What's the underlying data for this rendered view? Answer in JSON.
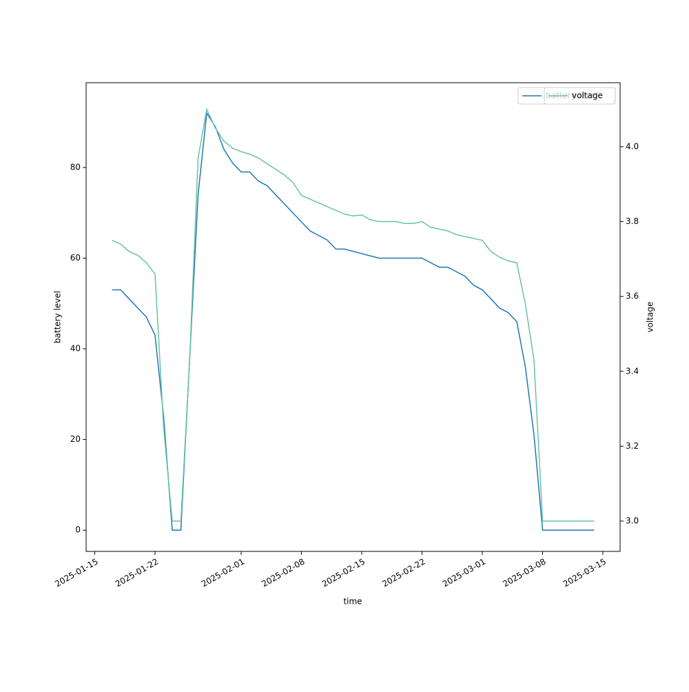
{
  "chart_data": {
    "type": "line",
    "xlabel": "time",
    "ylabel": "battery level",
    "y2label": "voltage",
    "x": [
      "2025-01-17",
      "2025-01-18",
      "2025-01-19",
      "2025-01-20",
      "2025-01-21",
      "2025-01-22",
      "2025-01-23",
      "2025-01-24",
      "2025-01-25",
      "2025-01-26",
      "2025-01-27",
      "2025-01-28",
      "2025-01-29",
      "2025-01-30",
      "2025-01-31",
      "2025-02-01",
      "2025-02-02",
      "2025-02-03",
      "2025-02-04",
      "2025-02-05",
      "2025-02-06",
      "2025-02-07",
      "2025-02-08",
      "2025-02-09",
      "2025-02-10",
      "2025-02-11",
      "2025-02-12",
      "2025-02-13",
      "2025-02-14",
      "2025-02-15",
      "2025-02-16",
      "2025-02-17",
      "2025-02-18",
      "2025-02-19",
      "2025-02-20",
      "2025-02-21",
      "2025-02-22",
      "2025-02-23",
      "2025-02-24",
      "2025-02-25",
      "2025-02-26",
      "2025-02-27",
      "2025-02-28",
      "2025-03-01",
      "2025-03-02",
      "2025-03-03",
      "2025-03-04",
      "2025-03-05",
      "2025-03-06",
      "2025-03-07",
      "2025-03-08",
      "2025-03-09",
      "2025-03-10",
      "2025-03-11",
      "2025-03-12",
      "2025-03-13",
      "2025-03-14"
    ],
    "series": [
      {
        "name": "battery level",
        "color": "#1f77b4",
        "axis": "y",
        "values": [
          53,
          53,
          51,
          49,
          47,
          43,
          25,
          0,
          0,
          37,
          74,
          92,
          89,
          84,
          81,
          79,
          79,
          77,
          76,
          74,
          72,
          70,
          68,
          66,
          65,
          64,
          62,
          62,
          61.5,
          61,
          60.5,
          60,
          60,
          60,
          60,
          60,
          60,
          59,
          58,
          58,
          57,
          56,
          54,
          53,
          51,
          49,
          48,
          46,
          36,
          21,
          0,
          0,
          0,
          0,
          0,
          0,
          0
        ]
      },
      {
        "name": "voltage",
        "color": "#66c2a5",
        "axis": "y2",
        "values": [
          3.75,
          3.74,
          3.72,
          3.71,
          3.69,
          3.66,
          3.25,
          3.0,
          3.0,
          3.42,
          3.97,
          4.1,
          4.05,
          4.015,
          3.996,
          3.987,
          3.98,
          3.97,
          3.955,
          3.94,
          3.925,
          3.905,
          3.87,
          3.86,
          3.85,
          3.84,
          3.83,
          3.82,
          3.815,
          3.818,
          3.805,
          3.8,
          3.8,
          3.8,
          3.795,
          3.795,
          3.8,
          3.785,
          3.78,
          3.775,
          3.765,
          3.76,
          3.755,
          3.75,
          3.72,
          3.705,
          3.695,
          3.69,
          3.58,
          3.43,
          3.0,
          3.0,
          3.0,
          3.0,
          3.0,
          3.0,
          3.0
        ]
      }
    ],
    "xlim": [
      "2025-01-14",
      "2025-03-17"
    ],
    "xticks": [
      "2025-01-15",
      "2025-01-22",
      "2025-02-01",
      "2025-02-08",
      "2025-02-15",
      "2025-02-22",
      "2025-03-01",
      "2025-03-08",
      "2025-03-15"
    ],
    "ylim": [
      -4.7,
      98.7
    ],
    "yticks": [
      0,
      20,
      40,
      60,
      80
    ],
    "y2lim": [
      2.919,
      4.171
    ],
    "y2ticks": [
      {
        "value": 3,
        "label": "3.0"
      },
      3.2,
      3.4,
      3.6,
      3.8,
      {
        "value": 4,
        "label": "4.0"
      }
    ],
    "legend": "upper right"
  }
}
